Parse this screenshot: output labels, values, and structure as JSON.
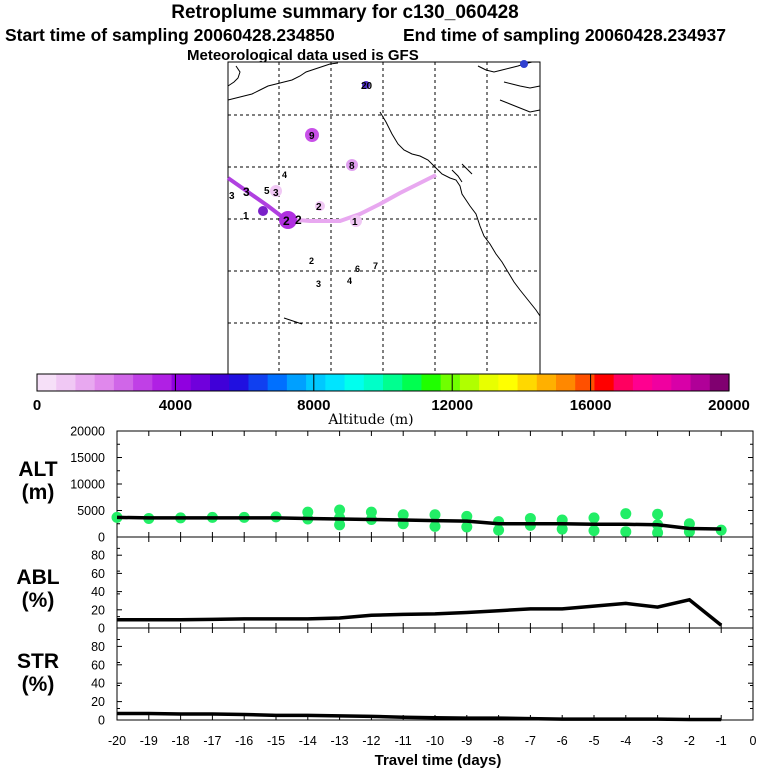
{
  "header": {
    "title": "Retroplume summary for c130_060428",
    "start_time": "Start time of sampling 20060428.234850",
    "end_time": "End time of sampling 20060428.234937",
    "met_data": "Meteorological data used is GFS"
  },
  "colors": {
    "footprint_line_dark": "#b040e0",
    "footprint_line_light": "#e8a8f0",
    "scatter_points": "#22ee66",
    "lines": "#000000"
  },
  "colorbar": {
    "ticks": [
      "0",
      "4000",
      "8000",
      "12000",
      "16000",
      "20000"
    ],
    "label": "Altitude (m)",
    "swatches": [
      "#f6e0f8",
      "#f0c8f4",
      "#e8a8f0",
      "#e088ec",
      "#d066e8",
      "#c040e6",
      "#b020e4",
      "#9000e0",
      "#7000dc",
      "#4000d8",
      "#2010e0",
      "#1040f0",
      "#0070ff",
      "#00a0ff",
      "#00c8ff",
      "#00e4ff",
      "#00ffee",
      "#00ffc8",
      "#00ff90",
      "#00ff50",
      "#20ff00",
      "#70ff00",
      "#b0ff00",
      "#e8ff00",
      "#ffff00",
      "#ffd800",
      "#ffb000",
      "#ff8800",
      "#ff5000",
      "#ff0000",
      "#ff0060",
      "#ff0090",
      "#f000a0",
      "#d800a8",
      "#b00098",
      "#800070"
    ]
  },
  "map_labels": [
    "20",
    "9",
    "8",
    "4",
    "5",
    "3",
    "3",
    "3",
    "2",
    "2",
    "2",
    "1",
    "1",
    "2",
    "6",
    "7",
    "3",
    "4"
  ],
  "chart_data": [
    {
      "type": "scatter+line",
      "panel": "ALT",
      "ylabel": "ALT (m)",
      "ylabel_lines": [
        "ALT",
        "(m)"
      ],
      "ylim": [
        0,
        20000
      ],
      "yticks": [
        "0",
        "5000",
        "10000",
        "15000",
        "20000"
      ],
      "xlim": [
        -20,
        0
      ],
      "line": {
        "x": [
          -20,
          -19,
          -18,
          -17,
          -16,
          -15,
          -14,
          -13,
          -12,
          -11,
          -10,
          -9,
          -8,
          -7,
          -6,
          -5,
          -4,
          -3,
          -2,
          -1
        ],
        "y": [
          3700,
          3600,
          3600,
          3600,
          3600,
          3600,
          3500,
          3400,
          3300,
          3200,
          3100,
          3000,
          2500,
          2500,
          2500,
          2400,
          2400,
          2300,
          1600,
          1500
        ]
      },
      "points": [
        {
          "x": -20,
          "y": 3700
        },
        {
          "x": -19,
          "y": 3500
        },
        {
          "x": -18,
          "y": 3600
        },
        {
          "x": -17,
          "y": 3700
        },
        {
          "x": -16,
          "y": 3700
        },
        {
          "x": -15,
          "y": 3800
        },
        {
          "x": -14,
          "y": 3400
        },
        {
          "x": -14,
          "y": 4700
        },
        {
          "x": -13,
          "y": 3600
        },
        {
          "x": -13,
          "y": 5100
        },
        {
          "x": -13,
          "y": 2300
        },
        {
          "x": -12,
          "y": 3300
        },
        {
          "x": -12,
          "y": 4700
        },
        {
          "x": -11,
          "y": 2500
        },
        {
          "x": -11,
          "y": 4200
        },
        {
          "x": -10,
          "y": 4200
        },
        {
          "x": -10,
          "y": 2000
        },
        {
          "x": -9,
          "y": 3900
        },
        {
          "x": -9,
          "y": 1900
        },
        {
          "x": -8,
          "y": 2900
        },
        {
          "x": -8,
          "y": 1300
        },
        {
          "x": -7,
          "y": 2200
        },
        {
          "x": -7,
          "y": 3500
        },
        {
          "x": -6,
          "y": 1500
        },
        {
          "x": -6,
          "y": 3200
        },
        {
          "x": -5,
          "y": 3600
        },
        {
          "x": -5,
          "y": 1200
        },
        {
          "x": -4,
          "y": 4400
        },
        {
          "x": -4,
          "y": 1000
        },
        {
          "x": -3,
          "y": 4300
        },
        {
          "x": -3,
          "y": 2300
        },
        {
          "x": -3,
          "y": 800
        },
        {
          "x": -2,
          "y": 2500
        },
        {
          "x": -2,
          "y": 1000
        },
        {
          "x": -1,
          "y": 1300
        }
      ]
    },
    {
      "type": "line",
      "panel": "ABL",
      "ylabel": "ABL (%)",
      "ylabel_lines": [
        "ABL",
        "(%)"
      ],
      "ylim": [
        0,
        100
      ],
      "yticks": [
        "0",
        "20",
        "40",
        "60",
        "80"
      ],
      "xlim": [
        -20,
        0
      ],
      "x": [
        -20,
        -19,
        -18,
        -17,
        -16,
        -15,
        -14,
        -13,
        -12,
        -11,
        -10,
        -9,
        -8,
        -7,
        -6,
        -5,
        -4,
        -3,
        -2,
        -1
      ],
      "y": [
        9,
        9,
        9,
        9.5,
        10,
        10,
        10,
        11,
        14,
        15,
        15.5,
        17,
        19,
        21,
        21,
        24,
        27,
        23,
        31,
        3
      ]
    },
    {
      "type": "line",
      "panel": "STR",
      "ylabel": "STR (%)",
      "ylabel_lines": [
        "STR",
        "(%)"
      ],
      "ylim": [
        0,
        100
      ],
      "yticks": [
        "0",
        "20",
        "40",
        "60",
        "80"
      ],
      "xlim": [
        -20,
        0
      ],
      "x": [
        -20,
        -19,
        -18,
        -17,
        -16,
        -15,
        -14,
        -13,
        -12,
        -11,
        -10,
        -9,
        -8,
        -7,
        -6,
        -5,
        -4,
        -3,
        -2,
        -1
      ],
      "y": [
        7,
        7,
        6.5,
        6.5,
        6,
        5,
        5,
        4.5,
        4,
        3,
        2.5,
        2,
        2,
        1.5,
        1,
        1,
        1,
        1,
        0.5,
        0.5
      ],
      "xticks": [
        "-20",
        "-19",
        "-18",
        "-17",
        "-16",
        "-15",
        "-14",
        "-13",
        "-12",
        "-11",
        "-10",
        "-9",
        "-8",
        "-7",
        "-6",
        "-5",
        "-4",
        "-3",
        "-2",
        "-1",
        "0"
      ],
      "xlabel": "Travel time (days)"
    }
  ]
}
